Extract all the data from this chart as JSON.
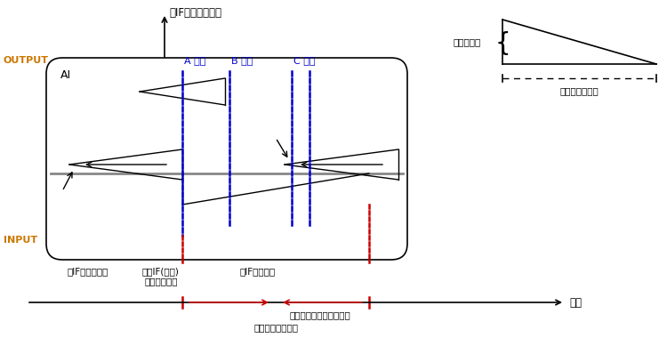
{
  "bg_color": "#ffffff",
  "output_label": "OUTPUT",
  "input_label": "INPUT",
  "ai_label": "AI",
  "top_arrow_text": "足IF「一歩前へ」",
  "label_A": "A 地点",
  "label_B": "B 地点",
  "label_C": "C 地点",
  "label_ear1": "耳IF「おいで」",
  "label_body": "体感IF(快楽)\nなでなでなど",
  "label_ear2": "耳IF「凱い」",
  "time_label": "時間",
  "bottom_text1": "この間に発生した刺激が",
  "bottom_text2": "実行条件となる。",
  "stimulus_label1": "刺激の強さ",
  "stimulus_label2": "刺激の滞在時間",
  "colors": {
    "black": "#000000",
    "blue_dashed": "#0000cc",
    "red_dashed": "#cc0000",
    "gray": "#888888",
    "orange": "#cc7700"
  }
}
